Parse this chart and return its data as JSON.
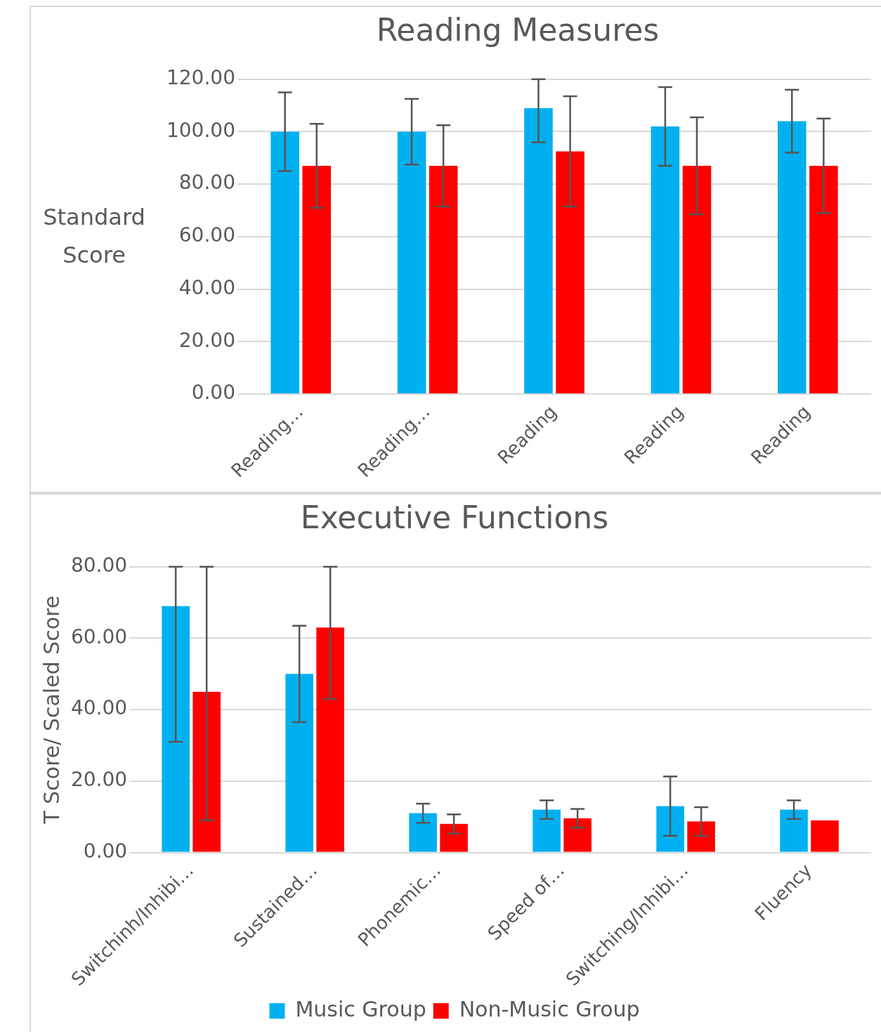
{
  "chart_data": [
    {
      "type": "bar",
      "title": "Reading Measures",
      "ylabel": "Standard Score",
      "categories": [
        "Reading…",
        "Reading…",
        "Reading",
        "Reading",
        "Reading"
      ],
      "series": [
        {
          "color": "#00b0f0",
          "values": [
            100,
            100,
            109,
            102,
            104
          ],
          "errors": [
            15,
            12.5,
            [
              96,
              120
            ],
            15,
            12
          ]
        },
        {
          "color": "#ff0000",
          "values": [
            87,
            87,
            92.5,
            87,
            87
          ],
          "errors": [
            16,
            15.5,
            21,
            18.5,
            18
          ]
        }
      ],
      "ylim": [
        0,
        120
      ],
      "yticks": [
        {
          "value": 0,
          "label": "0.00"
        },
        {
          "value": 20,
          "label": "20.00"
        },
        {
          "value": 40,
          "label": "40.00"
        },
        {
          "value": 60,
          "label": "60.00"
        },
        {
          "value": 80,
          "label": "80.00"
        },
        {
          "value": 100,
          "label": "100.00"
        },
        {
          "value": 120,
          "label": "120.00"
        }
      ],
      "grid": "y",
      "legend": false
    },
    {
      "type": "bar",
      "title": "Executive Functions",
      "ylabel": "T Score/ Scaled Score",
      "categories": [
        "Switchinh/Inhibi…",
        "Sustained…",
        "Phonemic…",
        "Speed of…",
        "Switching/Inhibi…",
        "Fluency"
      ],
      "series": [
        {
          "name": "Music Group",
          "color": "#00b0f0",
          "values": [
            69,
            50,
            11,
            12,
            13,
            12
          ],
          "errors": [
            [
              31,
              80
            ],
            13.5,
            2.7,
            2.6,
            8.3,
            2.6
          ]
        },
        {
          "name": "Non-Music Group",
          "color": "#ff0000",
          "values": [
            45,
            63,
            8,
            9.6,
            8.7,
            9
          ],
          "errors": [
            [
              9,
              80
            ],
            [
              43,
              80
            ],
            2.7,
            2.6,
            4,
            null
          ]
        }
      ],
      "ylim": [
        0,
        80
      ],
      "yticks": [
        {
          "value": 0,
          "label": "0.00"
        },
        {
          "value": 20,
          "label": "20.00"
        },
        {
          "value": 40,
          "label": "40.00"
        },
        {
          "value": 60,
          "label": "60.00"
        },
        {
          "value": 80,
          "label": "80.00"
        }
      ],
      "grid": "y",
      "legend": "bottom"
    }
  ]
}
